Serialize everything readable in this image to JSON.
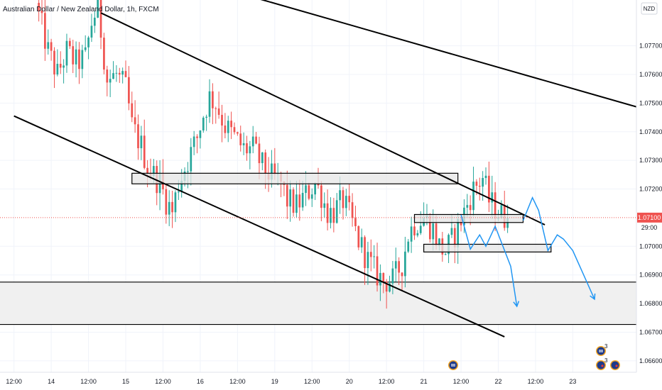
{
  "header": {
    "title": "Australian Dollar / New Zealand Dollar, 1h, FXCM",
    "currency": "NZD"
  },
  "colors": {
    "up": "#26a69a",
    "down": "#ef5350",
    "price_tag": "#ef5350",
    "projection": "#2196f3",
    "trendline": "#000000",
    "zone_fill": "#f0f0f0",
    "grid": "#f0f3fa"
  },
  "price_tag": {
    "value": "1.07100",
    "countdown": "29:00"
  },
  "events": {
    "count_a": "3",
    "count_b": "3"
  },
  "chart_data": {
    "type": "candlestick",
    "title": "Australian Dollar / New Zealand Dollar, 1h, FXCM",
    "ylabel": "NZD",
    "ylim": [
      1.0656,
      1.0786
    ],
    "y_ticks": [
      {
        "value": 1.066,
        "label": "1.06600"
      },
      {
        "value": 1.067,
        "label": "1.06700"
      },
      {
        "value": 1.068,
        "label": "1.06800"
      },
      {
        "value": 1.069,
        "label": "1.06900"
      },
      {
        "value": 1.07,
        "label": "1.07000"
      },
      {
        "value": 1.072,
        "label": "1.07200"
      },
      {
        "value": 1.073,
        "label": "1.07300"
      },
      {
        "value": 1.074,
        "label": "1.07400"
      },
      {
        "value": 1.075,
        "label": "1.07500"
      },
      {
        "value": 1.076,
        "label": "1.07600"
      },
      {
        "value": 1.077,
        "label": "1.07700"
      }
    ],
    "x_ticks": [
      {
        "t": -12,
        "label": "12:00"
      },
      {
        "t": 0,
        "label": "14"
      },
      {
        "t": 12,
        "label": "12:00"
      },
      {
        "t": 24,
        "label": "15"
      },
      {
        "t": 36,
        "label": "12:00"
      },
      {
        "t": 48,
        "label": "16"
      },
      {
        "t": 60,
        "label": "12:00"
      },
      {
        "t": 72,
        "label": "19"
      },
      {
        "t": 84,
        "label": "12:00"
      },
      {
        "t": 96,
        "label": "20"
      },
      {
        "t": 108,
        "label": "12:00"
      },
      {
        "t": 120,
        "label": "21"
      },
      {
        "t": 132,
        "label": "12:00"
      },
      {
        "t": 144,
        "label": "22"
      },
      {
        "t": 156,
        "label": "12:00"
      },
      {
        "t": 168,
        "label": "23"
      }
    ],
    "t_range": [
      -16.5,
      188.5
    ],
    "current_price": 1.071,
    "candle_path": [
      [
        -4,
        1.0785
      ],
      [
        0,
        1.0768
      ],
      [
        3,
        1.076
      ],
      [
        6,
        1.0768
      ],
      [
        9,
        1.0764
      ],
      [
        12,
        1.0766
      ],
      [
        14,
        1.0778
      ],
      [
        16,
        1.0784
      ],
      [
        19,
        1.0758
      ],
      [
        22,
        1.076
      ],
      [
        25,
        1.0755
      ],
      [
        27,
        1.0742
      ],
      [
        30,
        1.0735
      ],
      [
        32,
        1.0728
      ],
      [
        36,
        1.0722
      ],
      [
        38,
        1.0716
      ],
      [
        40,
        1.0712
      ],
      [
        42,
        1.0722
      ],
      [
        45,
        1.073
      ],
      [
        48,
        1.0738
      ],
      [
        50,
        1.0746
      ],
      [
        52,
        1.0752
      ],
      [
        54,
        1.075
      ],
      [
        57,
        1.0742
      ],
      [
        60,
        1.0738
      ],
      [
        63,
        1.0734
      ],
      [
        66,
        1.0734
      ],
      [
        69,
        1.0728
      ],
      [
        72,
        1.0724
      ],
      [
        75,
        1.0722
      ],
      [
        77,
        1.0716
      ],
      [
        80,
        1.0714
      ],
      [
        83,
        1.0718
      ],
      [
        86,
        1.0722
      ],
      [
        88,
        1.0718
      ],
      [
        90,
        1.0712
      ],
      [
        92,
        1.0712
      ],
      [
        95,
        1.0716
      ],
      [
        98,
        1.0708
      ],
      [
        100,
        1.0702
      ],
      [
        103,
        1.0695
      ],
      [
        106,
        1.069
      ],
      [
        108,
        1.0688
      ],
      [
        111,
        1.0688
      ],
      [
        114,
        1.0694
      ],
      [
        116,
        1.0704
      ],
      [
        118,
        1.0708
      ],
      [
        121,
        1.071
      ],
      [
        124,
        1.0706
      ],
      [
        126,
        1.07
      ],
      [
        128,
        1.0698
      ],
      [
        131,
        1.0704
      ],
      [
        134,
        1.0712
      ],
      [
        137,
        1.072
      ],
      [
        140,
        1.0724
      ],
      [
        142,
        1.0716
      ],
      [
        145,
        1.0712
      ],
      [
        147,
        1.071
      ]
    ],
    "trendlines": [
      {
        "name": "upper-channel",
        "from": [
          16,
          1.07815
        ],
        "to": [
          159,
          1.07075
        ]
      },
      {
        "name": "lower-channel",
        "from": [
          -12,
          1.07455
        ],
        "to": [
          146,
          1.06684
        ]
      },
      {
        "name": "long-descending",
        "from": [
          64,
          1.07873
        ],
        "to": [
          188.5,
          1.07487
        ]
      }
    ],
    "horizontal_lines": [
      1.06875,
      1.06727
    ],
    "shaded_zone": [
      1.06727,
      1.06875
    ],
    "boxes": [
      {
        "name": "resistance-box-upper",
        "t0": 26,
        "t1": 131,
        "y0": 1.07255,
        "y1": 1.07218
      },
      {
        "name": "resistance-box-mid",
        "t0": 117,
        "t1": 152,
        "y0": 1.07111,
        "y1": 1.07083
      },
      {
        "name": "support-box-lower",
        "t0": 120,
        "t1": 161,
        "y0": 1.07007,
        "y1": 1.0698
      }
    ],
    "projections": [
      [
        [
          132,
          1.0711
        ],
        [
          135,
          1.0699
        ],
        [
          138,
          1.0704
        ],
        [
          140,
          1.07
        ],
        [
          143,
          1.0707
        ],
        [
          148,
          1.0693
        ],
        [
          150,
          1.0679
        ]
      ],
      [
        [
          152,
          1.0709
        ],
        [
          155,
          1.0717
        ],
        [
          157,
          1.07125
        ],
        [
          160,
          1.06985
        ],
        [
          163,
          1.0704
        ],
        [
          165,
          1.07025
        ],
        [
          168,
          1.06985
        ],
        [
          175,
          1.06815
        ]
      ]
    ]
  }
}
